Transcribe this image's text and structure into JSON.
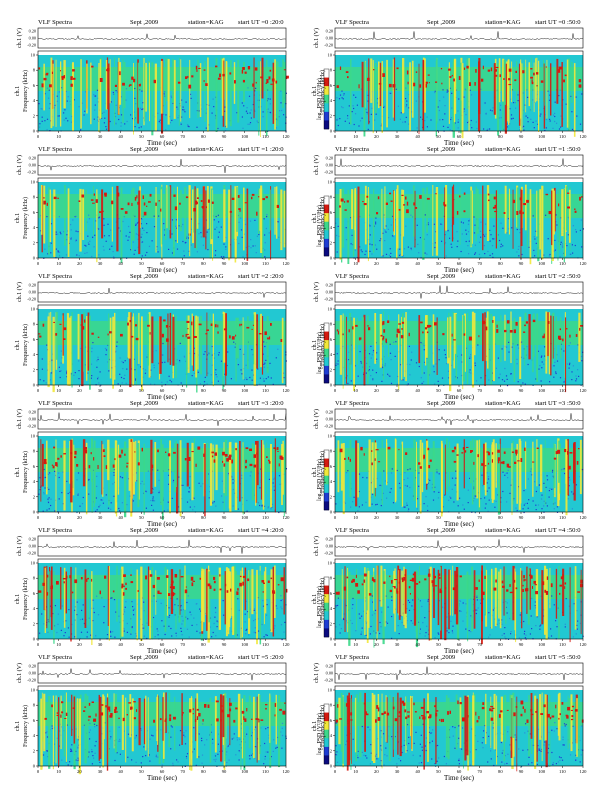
{
  "figure": {
    "header": {
      "left": "VLF Spectra",
      "mid": "Sept ,2009",
      "station": "station=KAG",
      "start_prefix": "start  UT ="
    },
    "amp_label": "ch.1 (V)",
    "amp_ticks": [
      "0.20",
      "0.00",
      "-0.20"
    ],
    "channel_label": "ch.1",
    "ylabel": "Frequency  (kHz)",
    "xlabel": "Time  (sec)",
    "colorbar_label": "log₁₀PSD (V²/Hz)",
    "colors": {
      "background": "#22c8d2",
      "green": "#3cd88a",
      "yellow": "#f2e83a",
      "red": "#d41a10",
      "blue": "#1e3cd2",
      "white": "#ffffff"
    }
  },
  "chart_data": [
    {
      "type": "heatmap",
      "title": "VLF Spectra   Sept ,2009   station=KAG   start UT =0 :20:0",
      "start": "0 :20:0",
      "xlabel": "Time  (sec)",
      "ylabel": "Frequency  (kHz)",
      "x_ticks": [
        0,
        10,
        20,
        30,
        40,
        50,
        60,
        70,
        80,
        90,
        100,
        110,
        120
      ],
      "y_ticks": [
        0,
        2,
        4,
        6,
        8,
        10
      ],
      "xlim": [
        0,
        120
      ],
      "ylim": [
        0,
        10
      ],
      "seed": 11,
      "intensity": 0.55
    },
    {
      "type": "heatmap",
      "title": "VLF Spectra   Sept ,2009   station=KAG   start UT =0 :50:0",
      "start": "0 :50:0",
      "xlabel": "Time  (sec)",
      "ylabel": "Frequency  (kHz)",
      "x_ticks": [
        0,
        10,
        20,
        30,
        40,
        50,
        60,
        70,
        80,
        90,
        100,
        110,
        120
      ],
      "y_ticks": [
        0,
        2,
        4,
        6,
        8,
        10
      ],
      "xlim": [
        0,
        120
      ],
      "ylim": [
        0,
        10
      ],
      "seed": 23,
      "intensity": 0.55
    },
    {
      "type": "heatmap",
      "title": "VLF Spectra   Sept ,2009   station=KAG   start UT =1 :20:0",
      "start": "1 :20:0",
      "xlabel": "Time  (sec)",
      "ylabel": "Frequency  (kHz)",
      "x_ticks": [
        0,
        10,
        20,
        30,
        40,
        50,
        60,
        70,
        80,
        90,
        100,
        110,
        120
      ],
      "y_ticks": [
        0,
        2,
        4,
        6,
        8,
        10
      ],
      "xlim": [
        0,
        120
      ],
      "ylim": [
        0,
        10
      ],
      "seed": 37,
      "intensity": 0.5
    },
    {
      "type": "heatmap",
      "title": "VLF Spectra   Sept ,2009   station=KAG   start UT =1 :50:0",
      "start": "1 :50:0",
      "xlabel": "Time  (sec)",
      "ylabel": "Frequency  (kHz)",
      "x_ticks": [
        0,
        10,
        20,
        30,
        40,
        50,
        60,
        70,
        80,
        90,
        100,
        110,
        120
      ],
      "y_ticks": [
        0,
        2,
        4,
        6,
        8,
        10
      ],
      "xlim": [
        0,
        120
      ],
      "ylim": [
        0,
        10
      ],
      "seed": 41,
      "intensity": 0.45
    },
    {
      "type": "heatmap",
      "title": "VLF Spectra   Sept ,2009   station=KAG   start UT =2 :20:0",
      "start": "2 :20:0",
      "xlabel": "Time  (sec)",
      "ylabel": "Frequency  (kHz)",
      "x_ticks": [
        0,
        10,
        20,
        30,
        40,
        50,
        60,
        70,
        80,
        90,
        100,
        110,
        120
      ],
      "y_ticks": [
        0,
        2,
        4,
        6,
        8,
        10
      ],
      "xlim": [
        0,
        120
      ],
      "ylim": [
        0,
        10
      ],
      "seed": 53,
      "intensity": 0.5
    },
    {
      "type": "heatmap",
      "title": "VLF Spectra   Sept ,2009   station=KAG   start UT =2 :50:0",
      "start": "2 :50:0",
      "xlabel": "Time  (sec)",
      "ylabel": "Frequency  (kHz)",
      "x_ticks": [
        0,
        10,
        20,
        30,
        40,
        50,
        60,
        70,
        80,
        90,
        100,
        110,
        120
      ],
      "y_ticks": [
        0,
        2,
        4,
        6,
        8,
        10
      ],
      "xlim": [
        0,
        120
      ],
      "ylim": [
        0,
        10
      ],
      "seed": 67,
      "intensity": 0.55
    },
    {
      "type": "heatmap",
      "title": "VLF Spectra   Sept ,2009   station=KAG   start UT =3 :20:0",
      "start": "3 :20:0",
      "xlabel": "Time  (sec)",
      "ylabel": "Frequency  (kHz)",
      "x_ticks": [
        0,
        10,
        20,
        30,
        40,
        50,
        60,
        70,
        80,
        90,
        100,
        110,
        120
      ],
      "y_ticks": [
        0,
        2,
        4,
        6,
        8,
        10
      ],
      "xlim": [
        0,
        120
      ],
      "ylim": [
        0,
        10
      ],
      "seed": 71,
      "intensity": 0.65
    },
    {
      "type": "heatmap",
      "title": "VLF Spectra   Sept ,2009   station=KAG   start UT =3 :50:0",
      "start": "3 :50:0",
      "xlabel": "Time  (sec)",
      "ylabel": "Frequency  (kHz)",
      "x_ticks": [
        0,
        10,
        20,
        30,
        40,
        50,
        60,
        70,
        80,
        90,
        100,
        110,
        120
      ],
      "y_ticks": [
        0,
        2,
        4,
        6,
        8,
        10
      ],
      "xlim": [
        0,
        120
      ],
      "ylim": [
        0,
        10
      ],
      "seed": 83,
      "intensity": 0.55
    },
    {
      "type": "heatmap",
      "title": "VLF Spectra   Sept ,2009   station=KAG   start UT =4 :20:0",
      "start": "4 :20:0",
      "xlabel": "Time  (sec)",
      "ylabel": "Frequency  (kHz)",
      "x_ticks": [
        0,
        10,
        20,
        30,
        40,
        50,
        60,
        70,
        80,
        90,
        100,
        110,
        120
      ],
      "y_ticks": [
        0,
        2,
        4,
        6,
        8,
        10
      ],
      "xlim": [
        0,
        120
      ],
      "ylim": [
        0,
        10
      ],
      "seed": 97,
      "intensity": 0.7
    },
    {
      "type": "heatmap",
      "title": "VLF Spectra   Sept ,2009   station=KAG   start UT =4 :50:0",
      "start": "4 :50:0",
      "xlabel": "Time  (sec)",
      "ylabel": "Frequency  (kHz)",
      "x_ticks": [
        0,
        10,
        20,
        30,
        40,
        50,
        60,
        70,
        80,
        90,
        100,
        110,
        120
      ],
      "y_ticks": [
        0,
        2,
        4,
        6,
        8,
        10
      ],
      "xlim": [
        0,
        120
      ],
      "ylim": [
        0,
        10
      ],
      "seed": 101,
      "intensity": 0.8
    },
    {
      "type": "heatmap",
      "title": "VLF Spectra   Sept ,2009   station=KAG   start UT =5 :20:0",
      "start": "5 :20:0",
      "xlabel": "Time  (sec)",
      "ylabel": "Frequency  (kHz)",
      "x_ticks": [
        0,
        10,
        20,
        30,
        40,
        50,
        60,
        70,
        80,
        90,
        100,
        110,
        120
      ],
      "y_ticks": [
        0,
        2,
        4,
        6,
        8,
        10
      ],
      "xlim": [
        0,
        120
      ],
      "ylim": [
        0,
        10
      ],
      "seed": 113,
      "intensity": 0.7
    },
    {
      "type": "heatmap",
      "title": "VLF Spectra   Sept ,2009   station=KAG   start UT =5 :50:0",
      "start": "5 :50:0",
      "xlabel": "Time  (sec)",
      "ylabel": "Frequency  (kHz)",
      "x_ticks": [
        0,
        10,
        20,
        30,
        40,
        50,
        60,
        70,
        80,
        90,
        100,
        110,
        120
      ],
      "y_ticks": [
        0,
        2,
        4,
        6,
        8,
        10
      ],
      "xlim": [
        0,
        120
      ],
      "ylim": [
        0,
        10
      ],
      "seed": 127,
      "intensity": 0.75
    }
  ]
}
